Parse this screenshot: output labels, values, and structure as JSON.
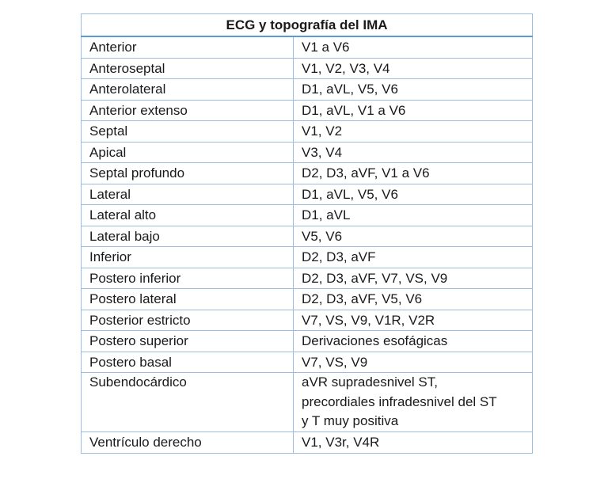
{
  "table": {
    "title": "ECG y topografía del IMA",
    "rows": [
      {
        "region": "Anterior",
        "leads": "V1 a V6"
      },
      {
        "region": "Anteroseptal",
        "leads": "V1, V2, V3, V4"
      },
      {
        "region": "Anterolateral",
        "leads": "D1, aVL, V5, V6"
      },
      {
        "region": "Anterior extenso",
        "leads": "D1, aVL, V1 a V6"
      },
      {
        "region": "Septal",
        "leads": "V1, V2"
      },
      {
        "region": "Apical",
        "leads": "V3, V4"
      },
      {
        "region": "Septal profundo",
        "leads": "D2, D3, aVF, V1 a V6"
      },
      {
        "region": "Lateral",
        "leads": "D1, aVL, V5, V6"
      },
      {
        "region": "Lateral alto",
        "leads": "D1, aVL"
      },
      {
        "region": "Lateral bajo",
        "leads": "V5, V6"
      },
      {
        "region": "Inferior",
        "leads": "D2, D3, aVF"
      },
      {
        "region": "Postero inferior",
        "leads": "D2, D3, aVF, V7, VS, V9"
      },
      {
        "region": "Postero lateral",
        "leads": "D2, D3, aVF, V5, V6"
      },
      {
        "region": "Posterior estricto",
        "leads": "V7, VS, V9, V1R, V2R"
      },
      {
        "region": "Postero superior",
        "leads": "Derivaciones esofágicas"
      },
      {
        "region": "Postero basal",
        "leads": "V7, VS, V9"
      },
      {
        "region": "Subendocárdico",
        "leads_lines": [
          "aVR supradesnivel ST,",
          "precordiales infradesnivel del ST",
          "y T muy positiva"
        ]
      },
      {
        "region": "Ventrículo derecho",
        "leads": "V1, V3r, V4R"
      }
    ]
  }
}
